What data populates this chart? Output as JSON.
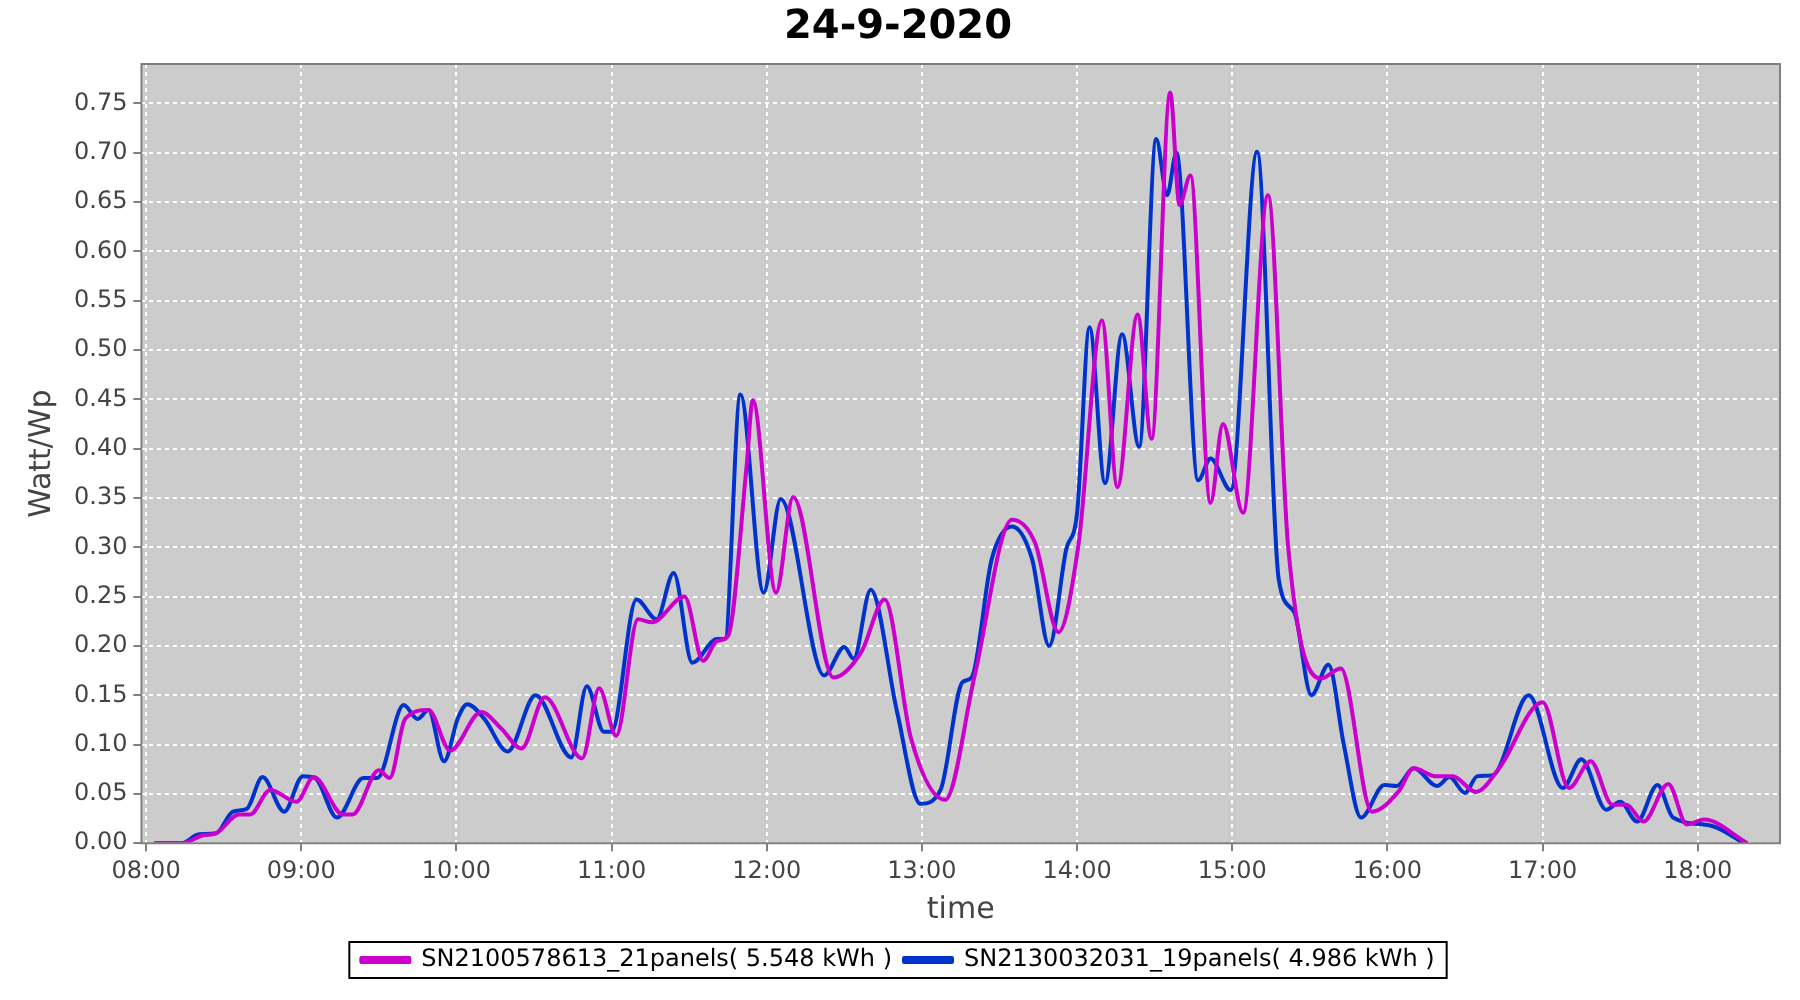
{
  "chart_data": {
    "type": "line",
    "title": "24-9-2020",
    "xlabel": "time",
    "ylabel": "Watt/Wp",
    "xlim": [
      7.97,
      18.53
    ],
    "xticks": [
      {
        "value": 8,
        "label": "08:00"
      },
      {
        "value": 9,
        "label": "09:00"
      },
      {
        "value": 10,
        "label": "10:00"
      },
      {
        "value": 11,
        "label": "11:00"
      },
      {
        "value": 12,
        "label": "12:00"
      },
      {
        "value": 13,
        "label": "13:00"
      },
      {
        "value": 14,
        "label": "14:00"
      },
      {
        "value": 15,
        "label": "15:00"
      },
      {
        "value": 16,
        "label": "16:00"
      },
      {
        "value": 17,
        "label": "17:00"
      },
      {
        "value": 18,
        "label": "18:00"
      }
    ],
    "ylim": [
      0,
      0.79
    ],
    "yticks": [
      {
        "value": 0,
        "label": "0.00"
      },
      {
        "value": 0.05,
        "label": "0.05"
      },
      {
        "value": 0.1,
        "label": "0.10"
      },
      {
        "value": 0.15,
        "label": "0.15"
      },
      {
        "value": 0.2,
        "label": "0.20"
      },
      {
        "value": 0.25,
        "label": "0.25"
      },
      {
        "value": 0.3,
        "label": "0.30"
      },
      {
        "value": 0.35,
        "label": "0.35"
      },
      {
        "value": 0.4,
        "label": "0.40"
      },
      {
        "value": 0.45,
        "label": "0.45"
      },
      {
        "value": 0.5,
        "label": "0.50"
      },
      {
        "value": 0.55,
        "label": "0.55"
      },
      {
        "value": 0.6,
        "label": "0.60"
      },
      {
        "value": 0.65,
        "label": "0.65"
      },
      {
        "value": 0.7,
        "label": "0.70"
      },
      {
        "value": 0.75,
        "label": "0.75"
      }
    ],
    "grid": true,
    "legend": "bottom",
    "line_style": "solid",
    "series": [
      {
        "name": "SN2100578613_21panels( 5.548 kWh )",
        "color": "#cc00cc",
        "x": [
          8.05,
          8.23,
          8.37,
          8.45,
          8.6,
          8.67,
          8.8,
          8.97,
          9.08,
          9.27,
          9.33,
          9.5,
          9.57,
          9.67,
          9.82,
          9.96,
          10.16,
          10.29,
          10.42,
          10.57,
          10.81,
          10.92,
          11.03,
          11.17,
          11.26,
          11.47,
          11.59,
          11.68,
          11.75,
          11.87,
          11.91,
          12.06,
          12.17,
          12.43,
          12.61,
          12.76,
          12.93,
          13.15,
          13.34,
          13.58,
          13.73,
          13.88,
          14.01,
          14.16,
          14.26,
          14.39,
          14.48,
          14.6,
          14.66,
          14.73,
          14.86,
          14.94,
          15.07,
          15.23,
          15.36,
          15.57,
          15.7,
          15.9,
          16.07,
          16.17,
          16.31,
          16.42,
          16.57,
          16.72,
          17,
          17.17,
          17.31,
          17.45,
          17.54,
          17.65,
          17.81,
          17.93,
          18.04,
          18.32
        ],
        "values": [
          0,
          0,
          0.008,
          0.01,
          0.029,
          0.029,
          0.054,
          0.042,
          0.067,
          0.029,
          0.029,
          0.074,
          0.066,
          0.126,
          0.135,
          0.094,
          0.133,
          0.116,
          0.096,
          0.148,
          0.086,
          0.157,
          0.109,
          0.227,
          0.224,
          0.25,
          0.185,
          0.205,
          0.21,
          0.382,
          0.449,
          0.254,
          0.351,
          0.168,
          0.194,
          0.247,
          0.106,
          0.044,
          0.17,
          0.328,
          0.304,
          0.214,
          0.304,
          0.53,
          0.361,
          0.536,
          0.41,
          0.761,
          0.647,
          0.677,
          0.345,
          0.425,
          0.335,
          0.657,
          0.301,
          0.167,
          0.177,
          0.032,
          0.052,
          0.076,
          0.068,
          0.068,
          0.052,
          0.076,
          0.143,
          0.056,
          0.083,
          0.039,
          0.039,
          0.022,
          0.06,
          0.019,
          0.024,
          0
        ]
      },
      {
        "name": "SN2130032031_19panels( 4.986 kWh )",
        "color": "#0033cc",
        "x": [
          8.06,
          8.23,
          8.34,
          8.45,
          8.56,
          8.65,
          8.75,
          8.89,
          9.01,
          9.09,
          9.23,
          9.4,
          9.49,
          9.66,
          9.75,
          9.82,
          9.92,
          10.01,
          10.07,
          10.18,
          10.33,
          10.51,
          10.74,
          10.84,
          10.95,
          11,
          11.16,
          11.29,
          11.4,
          11.52,
          11.68,
          11.73,
          11.83,
          11.98,
          12.09,
          12.37,
          12.5,
          12.56,
          12.67,
          12.84,
          12.99,
          13.12,
          13.26,
          13.32,
          13.45,
          13.58,
          13.71,
          13.82,
          13.93,
          14,
          14.08,
          14.18,
          14.29,
          14.4,
          14.51,
          14.58,
          14.64,
          14.78,
          14.86,
          14.99,
          15.16,
          15.3,
          15.4,
          15.51,
          15.62,
          15.72,
          15.83,
          15.98,
          16.06,
          16.17,
          16.32,
          16.4,
          16.5,
          16.58,
          16.68,
          16.91,
          17.13,
          17.25,
          17.41,
          17.5,
          17.61,
          17.74,
          17.84,
          18.08,
          18.3
        ],
        "values": [
          0,
          0,
          0.009,
          0.01,
          0.032,
          0.035,
          0.067,
          0.032,
          0.068,
          0.066,
          0.026,
          0.066,
          0.066,
          0.14,
          0.126,
          0.135,
          0.083,
          0.127,
          0.141,
          0.126,
          0.093,
          0.15,
          0.087,
          0.159,
          0.113,
          0.113,
          0.247,
          0.227,
          0.274,
          0.183,
          0.207,
          0.207,
          0.455,
          0.254,
          0.349,
          0.17,
          0.199,
          0.187,
          0.257,
          0.133,
          0.04,
          0.054,
          0.163,
          0.168,
          0.288,
          0.321,
          0.288,
          0.2,
          0.298,
          0.335,
          0.523,
          0.365,
          0.516,
          0.402,
          0.714,
          0.657,
          0.7,
          0.368,
          0.39,
          0.358,
          0.701,
          0.267,
          0.234,
          0.15,
          0.181,
          0.099,
          0.026,
          0.059,
          0.058,
          0.076,
          0.058,
          0.067,
          0.051,
          0.068,
          0.069,
          0.15,
          0.056,
          0.085,
          0.034,
          0.042,
          0.022,
          0.059,
          0.026,
          0.018,
          0
        ]
      }
    ]
  }
}
